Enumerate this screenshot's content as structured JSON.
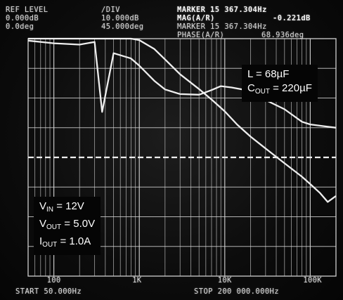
{
  "header": {
    "ref_level_label": "REF LEVEL",
    "ref_gain": "0.000dB",
    "ref_phase": "0.0deg",
    "div_label": "/DIV",
    "div_gain": "10.000dB",
    "div_phase": "45.000deg",
    "marker_freq_title": "MARKER 15 367.304Hz",
    "mag_label": "MAG(A/R)",
    "mag_value": "-0.221dB",
    "marker_freq_sub": "MARKER 15 367.304Hz",
    "phase_label": "PHASE(A/R)",
    "phase_value": "68.936deg"
  },
  "notes": {
    "inductor": {
      "prefix": "L",
      "value": "= 68µF"
    },
    "capacitor": {
      "prefix": "C",
      "sub": "OUT",
      "value": "= 220µF"
    },
    "vin": {
      "prefix": "V",
      "sub": "IN",
      "value": "= 12V"
    },
    "vout": {
      "prefix": "V",
      "sub": "OUT",
      "value": "= 5.0V"
    },
    "iout": {
      "prefix": "I",
      "sub": "OUT",
      "value": "= 1.0A"
    }
  },
  "footer": {
    "start": "START 50.000Hz",
    "stop": "STOP 200 000.000Hz"
  },
  "colors": {
    "trace": "#eeeeee",
    "grid": "#cfcfcf",
    "text": "#d8d8d8"
  },
  "chart_data": {
    "type": "line",
    "x_scale": "log",
    "xlim": [
      50,
      200000
    ],
    "x_ticks": [
      {
        "value": 100,
        "label": "100"
      },
      {
        "value": 1000,
        "label": "1K"
      },
      {
        "value": 10000,
        "label": "10K"
      },
      {
        "value": 100000,
        "label": "100K"
      }
    ],
    "y_divisions": 8,
    "grid": true,
    "reference_line_dashed": true,
    "series": [
      {
        "quantity": "gain",
        "units_per_div": 10,
        "x": [
          50,
          100,
          200,
          500,
          800,
          1000,
          1500,
          2000,
          3000,
          5000,
          7000,
          10000,
          14000,
          20000,
          30000,
          50000,
          80000,
          100000,
          130000,
          160000,
          200000
        ],
        "y": [
          40,
          40,
          40,
          40,
          40,
          39.5,
          36.5,
          33,
          28,
          23,
          19.5,
          15.5,
          11,
          7,
          3,
          -2,
          -6.5,
          -9,
          -12,
          -15,
          -13
        ]
      },
      {
        "quantity": "phase",
        "units_per_div": 45,
        "x": [
          50,
          100,
          200,
          300,
          367.304,
          500,
          800,
          1000,
          1500,
          2000,
          3000,
          5000,
          7000,
          9000,
          12000,
          16000,
          20000,
          30000,
          50000,
          80000,
          100000,
          150000,
          200000
        ],
        "y": [
          177,
          173,
          171,
          175,
          68.936,
          158,
          150,
          139,
          116,
          103,
          96,
          95,
          102,
          108,
          106,
          103,
          99,
          87,
          73,
          54,
          50,
          47,
          45
        ]
      }
    ]
  }
}
